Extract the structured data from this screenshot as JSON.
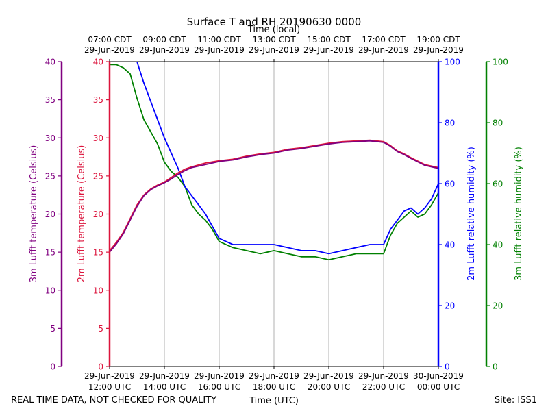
{
  "chart_data": {
    "type": "line",
    "title": "Surface T and RH 20190630 0000",
    "top_axis_label": "Time (local)",
    "xlabel": "Time (UTC)",
    "left_axes": [
      {
        "label": "3m Lufft temperature (Celsius)",
        "color": "#800080",
        "ylim": [
          0,
          40
        ],
        "ticks": [
          "0",
          "5",
          "10",
          "15",
          "20",
          "25",
          "30",
          "35",
          "40"
        ]
      },
      {
        "label": "2m Lufft temperature (Celsius)",
        "color": "#dc143c",
        "ylim": [
          0,
          40
        ],
        "ticks": [
          "0",
          "5",
          "10",
          "15",
          "20",
          "25",
          "30",
          "35",
          "40"
        ]
      }
    ],
    "right_axes": [
      {
        "label": "2m Lufft relative humidity (%)",
        "color": "#0000ff",
        "ylim": [
          0,
          100
        ],
        "ticks": [
          "0",
          "20",
          "40",
          "60",
          "80",
          "100"
        ]
      },
      {
        "label": "3m Lufft relative humidity (%)",
        "color": "#008000",
        "ylim": [
          0,
          100
        ],
        "ticks": [
          "0",
          "20",
          "40",
          "60",
          "80",
          "100"
        ]
      }
    ],
    "x_range_hours": [
      12,
      24
    ],
    "x_ticks_utc": [
      {
        "h": 12,
        "line1": "29-Jun-2019",
        "line2": "12:00 UTC"
      },
      {
        "h": 14,
        "line1": "29-Jun-2019",
        "line2": "14:00 UTC"
      },
      {
        "h": 16,
        "line1": "29-Jun-2019",
        "line2": "16:00 UTC"
      },
      {
        "h": 18,
        "line1": "29-Jun-2019",
        "line2": "18:00 UTC"
      },
      {
        "h": 20,
        "line1": "29-Jun-2019",
        "line2": "20:00 UTC"
      },
      {
        "h": 22,
        "line1": "29-Jun-2019",
        "line2": "22:00 UTC"
      },
      {
        "h": 24,
        "line1": "30-Jun-2019",
        "line2": "00:00 UTC"
      }
    ],
    "x_ticks_local": [
      {
        "h": 12,
        "line1": "07:00 CDT",
        "line2": "29-Jun-2019"
      },
      {
        "h": 14,
        "line1": "09:00 CDT",
        "line2": "29-Jun-2019"
      },
      {
        "h": 16,
        "line1": "11:00 CDT",
        "line2": "29-Jun-2019"
      },
      {
        "h": 18,
        "line1": "13:00 CDT",
        "line2": "29-Jun-2019"
      },
      {
        "h": 20,
        "line1": "15:00 CDT",
        "line2": "29-Jun-2019"
      },
      {
        "h": 22,
        "line1": "17:00 CDT",
        "line2": "29-Jun-2019"
      },
      {
        "h": 24,
        "line1": "19:00 CDT",
        "line2": "29-Jun-2019"
      }
    ],
    "grid": "vertical",
    "series": [
      {
        "name": "2m Lufft temperature",
        "axis": "temp",
        "color": "#dc143c",
        "x": [
          12.0,
          12.25,
          12.5,
          12.75,
          13.0,
          13.25,
          13.5,
          13.75,
          14.0,
          14.25,
          14.5,
          14.75,
          15.0,
          15.5,
          16.0,
          16.5,
          17.0,
          17.5,
          18.0,
          18.5,
          19.0,
          19.5,
          20.0,
          20.25,
          20.5,
          21.0,
          21.5,
          22.0,
          22.25,
          22.5,
          22.75,
          23.0,
          23.5,
          24.0
        ],
        "y": [
          15.2,
          16.3,
          17.6,
          19.4,
          21.2,
          22.5,
          23.3,
          23.8,
          24.2,
          24.8,
          25.4,
          25.9,
          26.2,
          26.7,
          27.0,
          27.2,
          27.6,
          27.9,
          28.1,
          28.5,
          28.7,
          29.0,
          29.3,
          29.4,
          29.5,
          29.6,
          29.7,
          29.5,
          29.0,
          28.3,
          27.9,
          27.4,
          26.5,
          26.1
        ]
      },
      {
        "name": "3m Lufft temperature",
        "axis": "temp",
        "color": "#800080",
        "x": [
          12.0,
          12.25,
          12.5,
          12.75,
          13.0,
          13.25,
          13.5,
          13.75,
          14.0,
          14.25,
          14.5,
          14.75,
          15.0,
          15.5,
          16.0,
          16.5,
          17.0,
          17.5,
          18.0,
          18.5,
          19.0,
          19.5,
          20.0,
          20.25,
          20.5,
          21.0,
          21.5,
          22.0,
          22.25,
          22.5,
          22.75,
          23.0,
          23.5,
          24.0
        ],
        "y": [
          15.0,
          16.1,
          17.4,
          19.2,
          21.0,
          22.4,
          23.2,
          23.7,
          24.1,
          24.6,
          25.2,
          25.7,
          26.1,
          26.5,
          26.9,
          27.1,
          27.5,
          27.8,
          28.0,
          28.4,
          28.6,
          28.9,
          29.2,
          29.3,
          29.4,
          29.5,
          29.6,
          29.4,
          28.9,
          28.2,
          27.8,
          27.3,
          26.4,
          26.0
        ]
      },
      {
        "name": "2m Lufft relative humidity",
        "axis": "rh",
        "color": "#0000ff",
        "x": [
          13.0,
          13.25,
          13.5,
          13.75,
          14.0,
          14.25,
          14.5,
          14.75,
          15.0,
          15.25,
          15.5,
          15.75,
          16.0,
          16.5,
          17.0,
          17.5,
          18.0,
          18.5,
          19.0,
          19.5,
          20.0,
          20.5,
          21.0,
          21.5,
          22.0,
          22.25,
          22.5,
          22.75,
          23.0,
          23.25,
          23.5,
          23.75,
          24.0
        ],
        "y": [
          100,
          93,
          87,
          81,
          75,
          70,
          65,
          59,
          56,
          53,
          50,
          46,
          42,
          40,
          40,
          40,
          40,
          39,
          38,
          38,
          37,
          38,
          39,
          40,
          40,
          45,
          48,
          51,
          52,
          50,
          52,
          55,
          60
        ]
      },
      {
        "name": "3m Lufft relative humidity",
        "axis": "rh",
        "color": "#008000",
        "x": [
          12.0,
          12.25,
          12.5,
          12.75,
          13.0,
          13.25,
          13.5,
          13.75,
          14.0,
          14.25,
          14.5,
          14.75,
          15.0,
          15.25,
          15.5,
          15.75,
          16.0,
          16.5,
          17.0,
          17.5,
          18.0,
          18.5,
          19.0,
          19.5,
          20.0,
          20.5,
          21.0,
          21.5,
          22.0,
          22.25,
          22.5,
          22.75,
          23.0,
          23.25,
          23.5,
          23.75,
          24.0
        ],
        "y": [
          99,
          99,
          98,
          96,
          88,
          81,
          77,
          73,
          67,
          64,
          62,
          59,
          53,
          50,
          48,
          45,
          41,
          39,
          38,
          37,
          38,
          37,
          36,
          36,
          35,
          36,
          37,
          37,
          37,
          43,
          47,
          49,
          51,
          49,
          50,
          53,
          57
        ]
      }
    ]
  },
  "footer": {
    "left_note": "REAL TIME DATA, NOT CHECKED FOR QUALITY",
    "site": "Site: ISS1"
  }
}
